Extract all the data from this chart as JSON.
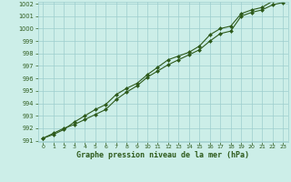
{
  "line1": [
    991.2,
    991.6,
    992.0,
    992.3,
    992.7,
    993.1,
    993.5,
    994.3,
    994.9,
    995.4,
    996.1,
    996.6,
    997.1,
    997.5,
    997.9,
    998.3,
    999.0,
    999.6,
    999.8,
    1001.0,
    1001.3,
    1001.5,
    1001.9,
    1002.1
  ],
  "line2": [
    991.2,
    991.5,
    991.9,
    992.5,
    993.0,
    993.5,
    993.9,
    994.7,
    995.2,
    995.6,
    996.3,
    996.9,
    997.5,
    997.8,
    998.1,
    998.6,
    999.5,
    1000.0,
    1000.2,
    1001.2,
    1001.5,
    1001.7,
    1002.2,
    1002.4
  ],
  "x": [
    0,
    1,
    2,
    3,
    4,
    5,
    6,
    7,
    8,
    9,
    10,
    11,
    12,
    13,
    14,
    15,
    16,
    17,
    18,
    19,
    20,
    21,
    22,
    23
  ],
  "ylim_min": 991,
  "ylim_max": 1002,
  "yticks": [
    991,
    992,
    993,
    994,
    995,
    996,
    997,
    998,
    999,
    1000,
    1001,
    1002
  ],
  "xticks": [
    0,
    1,
    2,
    3,
    4,
    5,
    6,
    7,
    8,
    9,
    10,
    11,
    12,
    13,
    14,
    15,
    16,
    17,
    18,
    19,
    20,
    21,
    22,
    23
  ],
  "line_color": "#2d5a1b",
  "bg_color": "#cceee8",
  "grid_color": "#9ecece",
  "xlabel": "Graphe pression niveau de la mer (hPa)"
}
